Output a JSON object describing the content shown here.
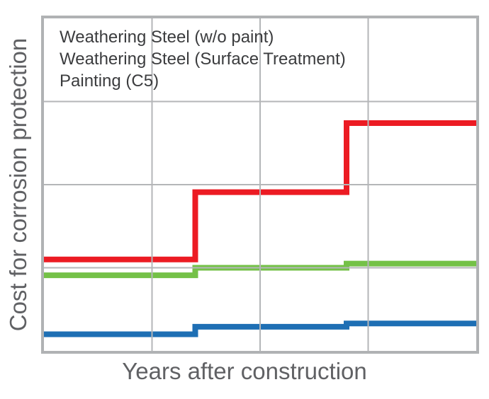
{
  "chart_data": {
    "type": "line",
    "subtype": "step-staircase",
    "title": "",
    "xlabel": "Years after construction",
    "ylabel": "Cost for corrosion protection",
    "x_range": [
      0,
      100
    ],
    "y_range": [
      0,
      4
    ],
    "x_gridlines": [
      25,
      50,
      75
    ],
    "y_gridlines": [
      1,
      2,
      3
    ],
    "axis_tick_labels_shown": false,
    "x_units": "years (no numeric ticks shown)",
    "y_units": "relative cost (no numeric ticks shown)",
    "step_x": [
      0,
      35,
      70,
      100
    ],
    "series": [
      {
        "name": "Weathering Steel (w/o paint)",
        "color": "#1e6fb4",
        "levels": [
          0.2,
          0.29,
          0.33
        ]
      },
      {
        "name": "Weathering Steel (Surface Treatment)",
        "color": "#74c147",
        "levels": [
          0.91,
          1.0,
          1.05
        ]
      },
      {
        "name": "Painting (C5)",
        "color": "#ec1b23",
        "levels": [
          1.1,
          1.91,
          2.74
        ]
      }
    ],
    "legend_position": "top-left inside plot, text only (no color swatches)",
    "grid_on": true,
    "grid_color": "#b4b6b8",
    "border_color": "#b0b2b4",
    "axis_label_color": "#606164",
    "legend_text_color": "#3b3c3e",
    "background_color": "#ffffff"
  }
}
